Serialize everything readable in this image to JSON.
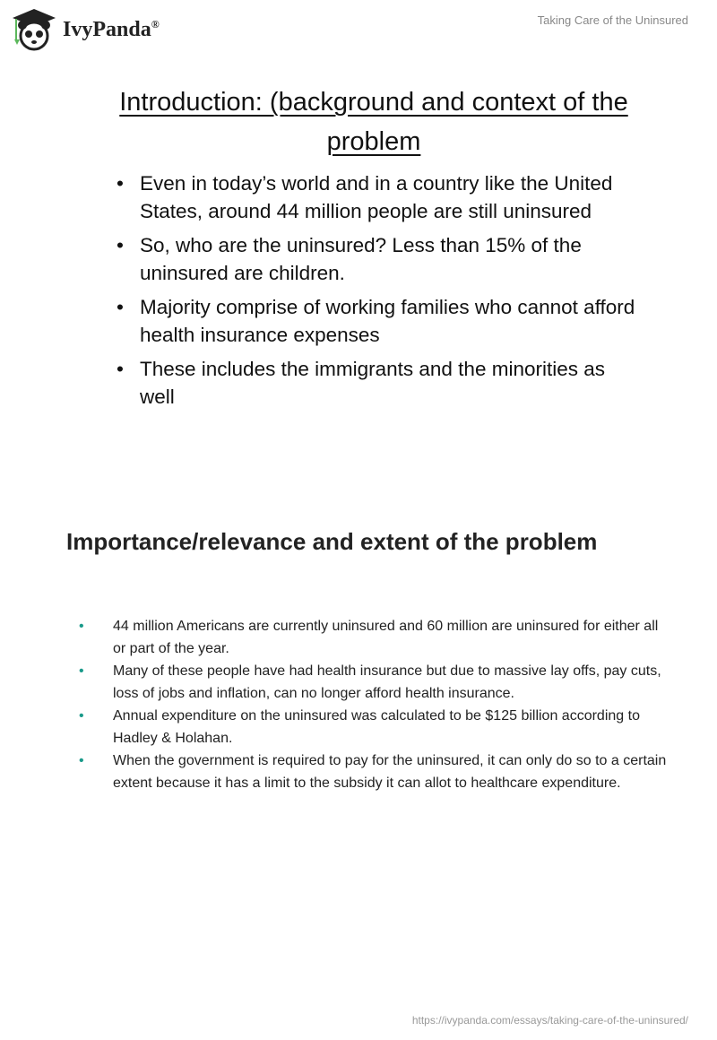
{
  "header": {
    "logo_text": "IvyPanda",
    "logo_mark": "®",
    "doc_title": "Taking Care of the Uninsured"
  },
  "slide": {
    "title": "Introduction: (background and context of the problem",
    "bullets": [
      "Even in today’s world and in a country like the United States, around 44 million people are still uninsured",
      "So, who are the uninsured? Less than 15% of the uninsured are children.",
      "Majority comprise of working families who cannot afford health insurance expenses",
      "These includes the immigrants and the minorities as well"
    ]
  },
  "section": {
    "heading": "Importance/relevance and extent of the problem",
    "bullet_color": "#1a9a8a",
    "bullets": [
      "44 million Americans are currently uninsured and 60 million are uninsured for either all or part of the year.",
      "Many of these people have had health insurance but due to massive lay offs, pay cuts, loss of jobs and inflation, can no longer afford health insurance.",
      "Annual expenditure on the uninsured was calculated to be $125 billion according to Hadley & Holahan.",
      "When the government is required to pay for the uninsured, it can only do so to a certain extent because it has a limit to the subsidy it can allot to healthcare expenditure."
    ]
  },
  "footer": {
    "url": "https://ivypanda.com/essays/taking-care-of-the-uninsured/"
  }
}
